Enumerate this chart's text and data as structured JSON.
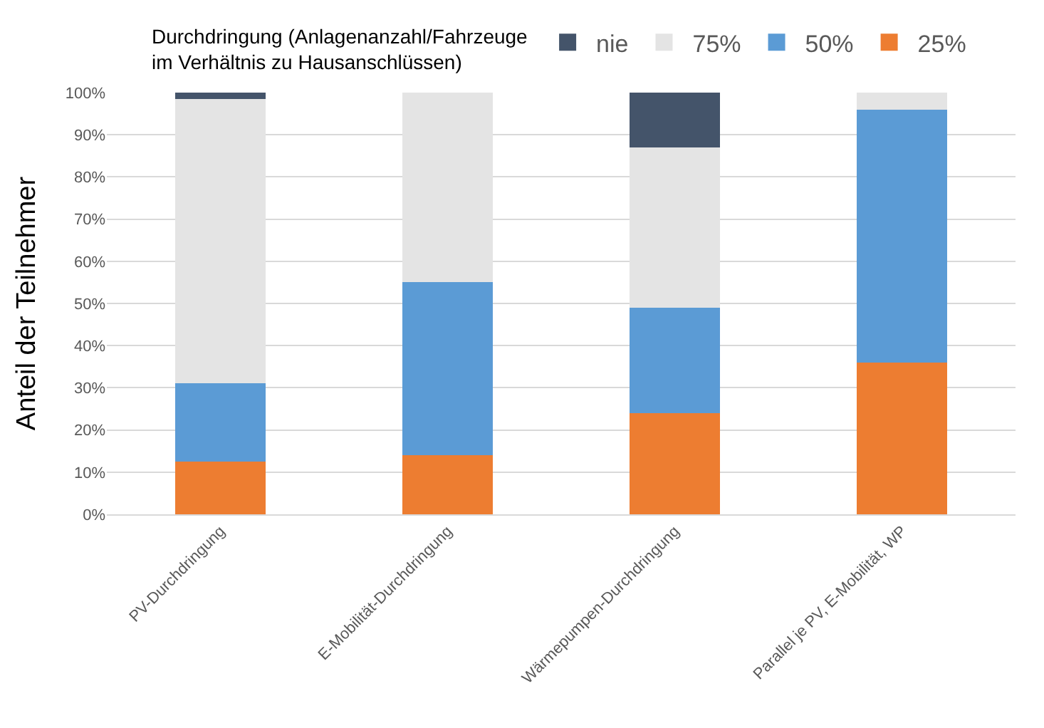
{
  "chart_data": {
    "type": "bar",
    "stacked": true,
    "legend_title": "Durchdringung (Anlagenanzahl/Fahrzeuge\nim Verhältnis zu Hausanschlüssen)",
    "ylabel": "Anteil der Teilnehmer",
    "categories": [
      "PV-Durchdringung",
      "E-Mobilität-Durchdringung",
      "Wärmepumpen-Durchdringung",
      "Parallel je PV, E-Mobilität, WP"
    ],
    "series": [
      {
        "name": "25%",
        "color": "#ed7d31",
        "values": [
          12.5,
          14,
          24,
          36
        ]
      },
      {
        "name": "50%",
        "color": "#5b9bd5",
        "values": [
          18.5,
          41,
          25,
          60
        ]
      },
      {
        "name": "75%",
        "color": "#e4e4e4",
        "values": [
          67.5,
          45,
          38,
          4
        ]
      },
      {
        "name": "nie",
        "color": "#44546a",
        "values": [
          1.5,
          0,
          13,
          0
        ]
      }
    ],
    "ylim": [
      0,
      100
    ],
    "yticks": [
      {
        "value": 0,
        "label": "0%"
      },
      {
        "value": 10,
        "label": "10%"
      },
      {
        "value": 20,
        "label": "20%"
      },
      {
        "value": 30,
        "label": "30%"
      },
      {
        "value": 40,
        "label": "40%"
      },
      {
        "value": 50,
        "label": "50%"
      },
      {
        "value": 60,
        "label": "60%"
      },
      {
        "value": 70,
        "label": "70%"
      },
      {
        "value": 80,
        "label": "80%"
      },
      {
        "value": 90,
        "label": "90%"
      },
      {
        "value": 100,
        "label": "100%"
      }
    ],
    "grid": "y",
    "legend": "top"
  }
}
